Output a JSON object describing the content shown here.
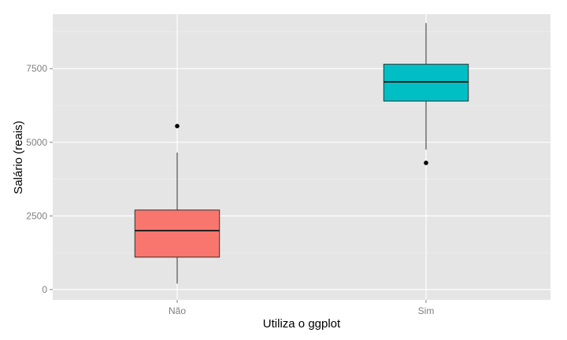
{
  "chart_data": {
    "type": "boxplot",
    "xlabel": "Utiliza o ggplot",
    "ylabel": "Salário (reais)",
    "categories": [
      "Não",
      "Sim"
    ],
    "yticks": [
      0,
      2500,
      5000,
      7500
    ],
    "ylim": [
      -350,
      9350
    ],
    "grid": true,
    "boxes": [
      {
        "category": "Não",
        "min": 200,
        "q1": 1100,
        "median": 2000,
        "q3": 2700,
        "max": 4650,
        "outliers": [
          5550
        ],
        "color": "#f8766d"
      },
      {
        "category": "Sim",
        "min": 4750,
        "q1": 6400,
        "median": 7050,
        "q3": 7650,
        "max": 9050,
        "outliers": [
          4300
        ],
        "color": "#00bfc4"
      }
    ]
  },
  "colors": {
    "panel_background": "#e5e5e5",
    "major_grid": "#ffffff",
    "minor_grid": "#f2f2f2",
    "tick_text": "#7f7f7f"
  }
}
